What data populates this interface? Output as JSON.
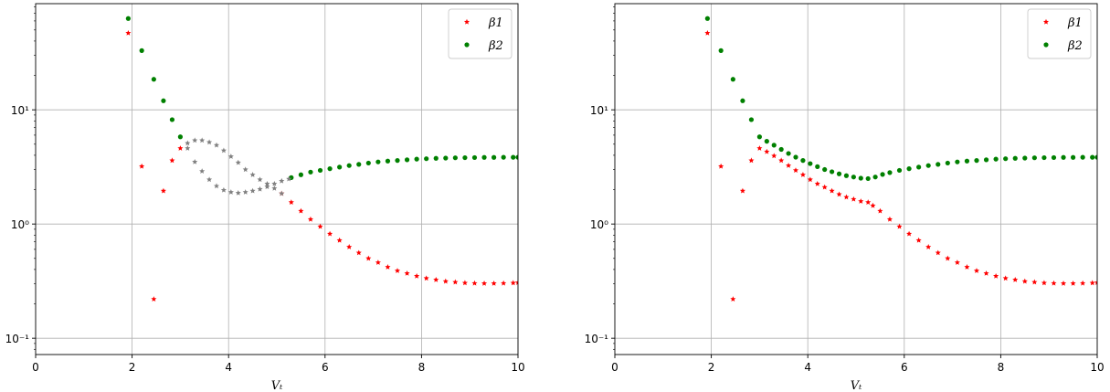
{
  "chart_data": [
    {
      "type": "scatter",
      "xlabel": "Vₜ",
      "ylabel": "",
      "xlim": [
        0,
        10
      ],
      "ylim": [
        0.072,
        85
      ],
      "yscale": "log",
      "grid": true,
      "legend_position": "top-right",
      "x_ticks": [
        {
          "v": 0,
          "label": "0"
        },
        {
          "v": 2,
          "label": "2"
        },
        {
          "v": 4,
          "label": "4"
        },
        {
          "v": 6,
          "label": "6"
        },
        {
          "v": 8,
          "label": "8"
        },
        {
          "v": 10,
          "label": "10"
        }
      ],
      "y_ticks": [
        {
          "v": 0.1,
          "label": "10⁻¹"
        },
        {
          "v": 1,
          "label": "10⁰"
        },
        {
          "v": 10,
          "label": "10¹"
        }
      ],
      "series": [
        {
          "name": "β1",
          "color": "#ff0000",
          "marker": "star",
          "points": [
            [
              1.92,
              47
            ],
            [
              2.2,
              3.2
            ],
            [
              2.45,
              0.22
            ],
            [
              2.65,
              1.95
            ],
            [
              2.83,
              3.6
            ],
            [
              3.0,
              4.6
            ],
            [
              5.1,
              1.85
            ],
            [
              5.3,
              1.55
            ],
            [
              5.5,
              1.3
            ],
            [
              5.7,
              1.1
            ],
            [
              5.9,
              0.95
            ],
            [
              6.1,
              0.82
            ],
            [
              6.3,
              0.72
            ],
            [
              6.5,
              0.63
            ],
            [
              6.7,
              0.56
            ],
            [
              6.9,
              0.5
            ],
            [
              7.1,
              0.46
            ],
            [
              7.3,
              0.42
            ],
            [
              7.5,
              0.39
            ],
            [
              7.7,
              0.37
            ],
            [
              7.9,
              0.35
            ],
            [
              8.1,
              0.335
            ],
            [
              8.3,
              0.325
            ],
            [
              8.5,
              0.315
            ],
            [
              8.7,
              0.31
            ],
            [
              8.9,
              0.305
            ],
            [
              9.1,
              0.303
            ],
            [
              9.3,
              0.302
            ],
            [
              9.5,
              0.302
            ],
            [
              9.7,
              0.303
            ],
            [
              9.9,
              0.305
            ],
            [
              10.0,
              0.307
            ]
          ]
        },
        {
          "name": "β2",
          "color": "#008000",
          "marker": "circle",
          "points": [
            [
              1.92,
              63
            ],
            [
              2.2,
              33
            ],
            [
              2.45,
              18.5
            ],
            [
              2.65,
              12
            ],
            [
              2.83,
              8.2
            ],
            [
              3.0,
              5.8
            ],
            [
              5.3,
              2.55
            ],
            [
              5.5,
              2.7
            ],
            [
              5.7,
              2.85
            ],
            [
              5.9,
              2.95
            ],
            [
              6.1,
              3.05
            ],
            [
              6.3,
              3.15
            ],
            [
              6.5,
              3.25
            ],
            [
              6.7,
              3.33
            ],
            [
              6.9,
              3.42
            ],
            [
              7.1,
              3.5
            ],
            [
              7.3,
              3.56
            ],
            [
              7.5,
              3.6
            ],
            [
              7.7,
              3.65
            ],
            [
              7.9,
              3.7
            ],
            [
              8.1,
              3.73
            ],
            [
              8.3,
              3.76
            ],
            [
              8.5,
              3.78
            ],
            [
              8.7,
              3.8
            ],
            [
              8.9,
              3.81
            ],
            [
              9.1,
              3.82
            ],
            [
              9.3,
              3.83
            ],
            [
              9.5,
              3.83
            ],
            [
              9.7,
              3.84
            ],
            [
              9.9,
              3.84
            ],
            [
              10.0,
              3.84
            ]
          ]
        },
        {
          "color": "#808080",
          "marker": "star",
          "points": [
            [
              3.15,
              5.1
            ],
            [
              3.3,
              5.4
            ],
            [
              3.45,
              5.4
            ],
            [
              3.6,
              5.2
            ],
            [
              3.75,
              4.9
            ],
            [
              3.9,
              4.4
            ],
            [
              4.05,
              3.9
            ],
            [
              4.2,
              3.45
            ],
            [
              4.35,
              3.0
            ],
            [
              4.5,
              2.7
            ],
            [
              4.65,
              2.45
            ],
            [
              4.8,
              2.25
            ],
            [
              4.95,
              2.05
            ],
            [
              5.1,
              1.85
            ],
            [
              3.15,
              4.6
            ],
            [
              3.3,
              3.5
            ],
            [
              3.45,
              2.9
            ],
            [
              3.6,
              2.45
            ],
            [
              3.75,
              2.15
            ],
            [
              3.9,
              1.98
            ],
            [
              4.05,
              1.9
            ],
            [
              4.2,
              1.87
            ],
            [
              4.35,
              1.9
            ],
            [
              4.5,
              1.95
            ],
            [
              4.65,
              2.02
            ],
            [
              4.8,
              2.12
            ],
            [
              4.95,
              2.25
            ],
            [
              5.1,
              2.38
            ],
            [
              5.25,
              2.48
            ]
          ]
        }
      ]
    },
    {
      "type": "scatter",
      "xlabel": "Vₜ",
      "ylabel": "",
      "xlim": [
        0,
        10
      ],
      "ylim": [
        0.072,
        85
      ],
      "yscale": "log",
      "grid": true,
      "legend_position": "top-right",
      "x_ticks": [
        {
          "v": 0,
          "label": "0"
        },
        {
          "v": 2,
          "label": "2"
        },
        {
          "v": 4,
          "label": "4"
        },
        {
          "v": 6,
          "label": "6"
        },
        {
          "v": 8,
          "label": "8"
        },
        {
          "v": 10,
          "label": "10"
        }
      ],
      "y_ticks": [
        {
          "v": 0.1,
          "label": "10⁻¹"
        },
        {
          "v": 1,
          "label": "10⁰"
        },
        {
          "v": 10,
          "label": "10¹"
        }
      ],
      "series": [
        {
          "name": "β1",
          "color": "#ff0000",
          "marker": "star",
          "points": [
            [
              1.92,
              47
            ],
            [
              2.2,
              3.2
            ],
            [
              2.45,
              0.22
            ],
            [
              2.65,
              1.95
            ],
            [
              2.83,
              3.6
            ],
            [
              3.0,
              4.6
            ],
            [
              3.15,
              4.3
            ],
            [
              3.3,
              3.95
            ],
            [
              3.45,
              3.6
            ],
            [
              3.6,
              3.25
            ],
            [
              3.75,
              2.95
            ],
            [
              3.9,
              2.7
            ],
            [
              4.05,
              2.45
            ],
            [
              4.2,
              2.25
            ],
            [
              4.35,
              2.1
            ],
            [
              4.5,
              1.95
            ],
            [
              4.65,
              1.82
            ],
            [
              4.8,
              1.72
            ],
            [
              4.95,
              1.65
            ],
            [
              5.1,
              1.58
            ],
            [
              5.25,
              1.55
            ],
            [
              5.35,
              1.45
            ],
            [
              5.5,
              1.3
            ],
            [
              5.7,
              1.1
            ],
            [
              5.9,
              0.95
            ],
            [
              6.1,
              0.82
            ],
            [
              6.3,
              0.72
            ],
            [
              6.5,
              0.63
            ],
            [
              6.7,
              0.56
            ],
            [
              6.9,
              0.5
            ],
            [
              7.1,
              0.46
            ],
            [
              7.3,
              0.42
            ],
            [
              7.5,
              0.39
            ],
            [
              7.7,
              0.37
            ],
            [
              7.9,
              0.35
            ],
            [
              8.1,
              0.335
            ],
            [
              8.3,
              0.325
            ],
            [
              8.5,
              0.315
            ],
            [
              8.7,
              0.31
            ],
            [
              8.9,
              0.305
            ],
            [
              9.1,
              0.303
            ],
            [
              9.3,
              0.302
            ],
            [
              9.5,
              0.302
            ],
            [
              9.7,
              0.303
            ],
            [
              9.9,
              0.305
            ],
            [
              10.0,
              0.307
            ]
          ]
        },
        {
          "name": "β2",
          "color": "#008000",
          "marker": "circle",
          "points": [
            [
              1.92,
              63
            ],
            [
              2.2,
              33
            ],
            [
              2.45,
              18.5
            ],
            [
              2.65,
              12
            ],
            [
              2.83,
              8.2
            ],
            [
              3.0,
              5.8
            ],
            [
              3.15,
              5.3
            ],
            [
              3.3,
              4.9
            ],
            [
              3.45,
              4.5
            ],
            [
              3.6,
              4.15
            ],
            [
              3.75,
              3.85
            ],
            [
              3.9,
              3.6
            ],
            [
              4.05,
              3.38
            ],
            [
              4.2,
              3.18
            ],
            [
              4.35,
              3.0
            ],
            [
              4.5,
              2.87
            ],
            [
              4.65,
              2.75
            ],
            [
              4.8,
              2.65
            ],
            [
              4.95,
              2.58
            ],
            [
              5.1,
              2.52
            ],
            [
              5.25,
              2.5
            ],
            [
              5.4,
              2.58
            ],
            [
              5.55,
              2.72
            ],
            [
              5.7,
              2.82
            ],
            [
              5.9,
              2.95
            ],
            [
              6.1,
              3.05
            ],
            [
              6.3,
              3.15
            ],
            [
              6.5,
              3.25
            ],
            [
              6.7,
              3.33
            ],
            [
              6.9,
              3.42
            ],
            [
              7.1,
              3.5
            ],
            [
              7.3,
              3.56
            ],
            [
              7.5,
              3.6
            ],
            [
              7.7,
              3.65
            ],
            [
              7.9,
              3.7
            ],
            [
              8.1,
              3.73
            ],
            [
              8.3,
              3.76
            ],
            [
              8.5,
              3.78
            ],
            [
              8.7,
              3.8
            ],
            [
              8.9,
              3.81
            ],
            [
              9.1,
              3.82
            ],
            [
              9.3,
              3.83
            ],
            [
              9.5,
              3.83
            ],
            [
              9.7,
              3.84
            ],
            [
              9.9,
              3.84
            ],
            [
              10.0,
              3.84
            ]
          ]
        }
      ]
    }
  ]
}
